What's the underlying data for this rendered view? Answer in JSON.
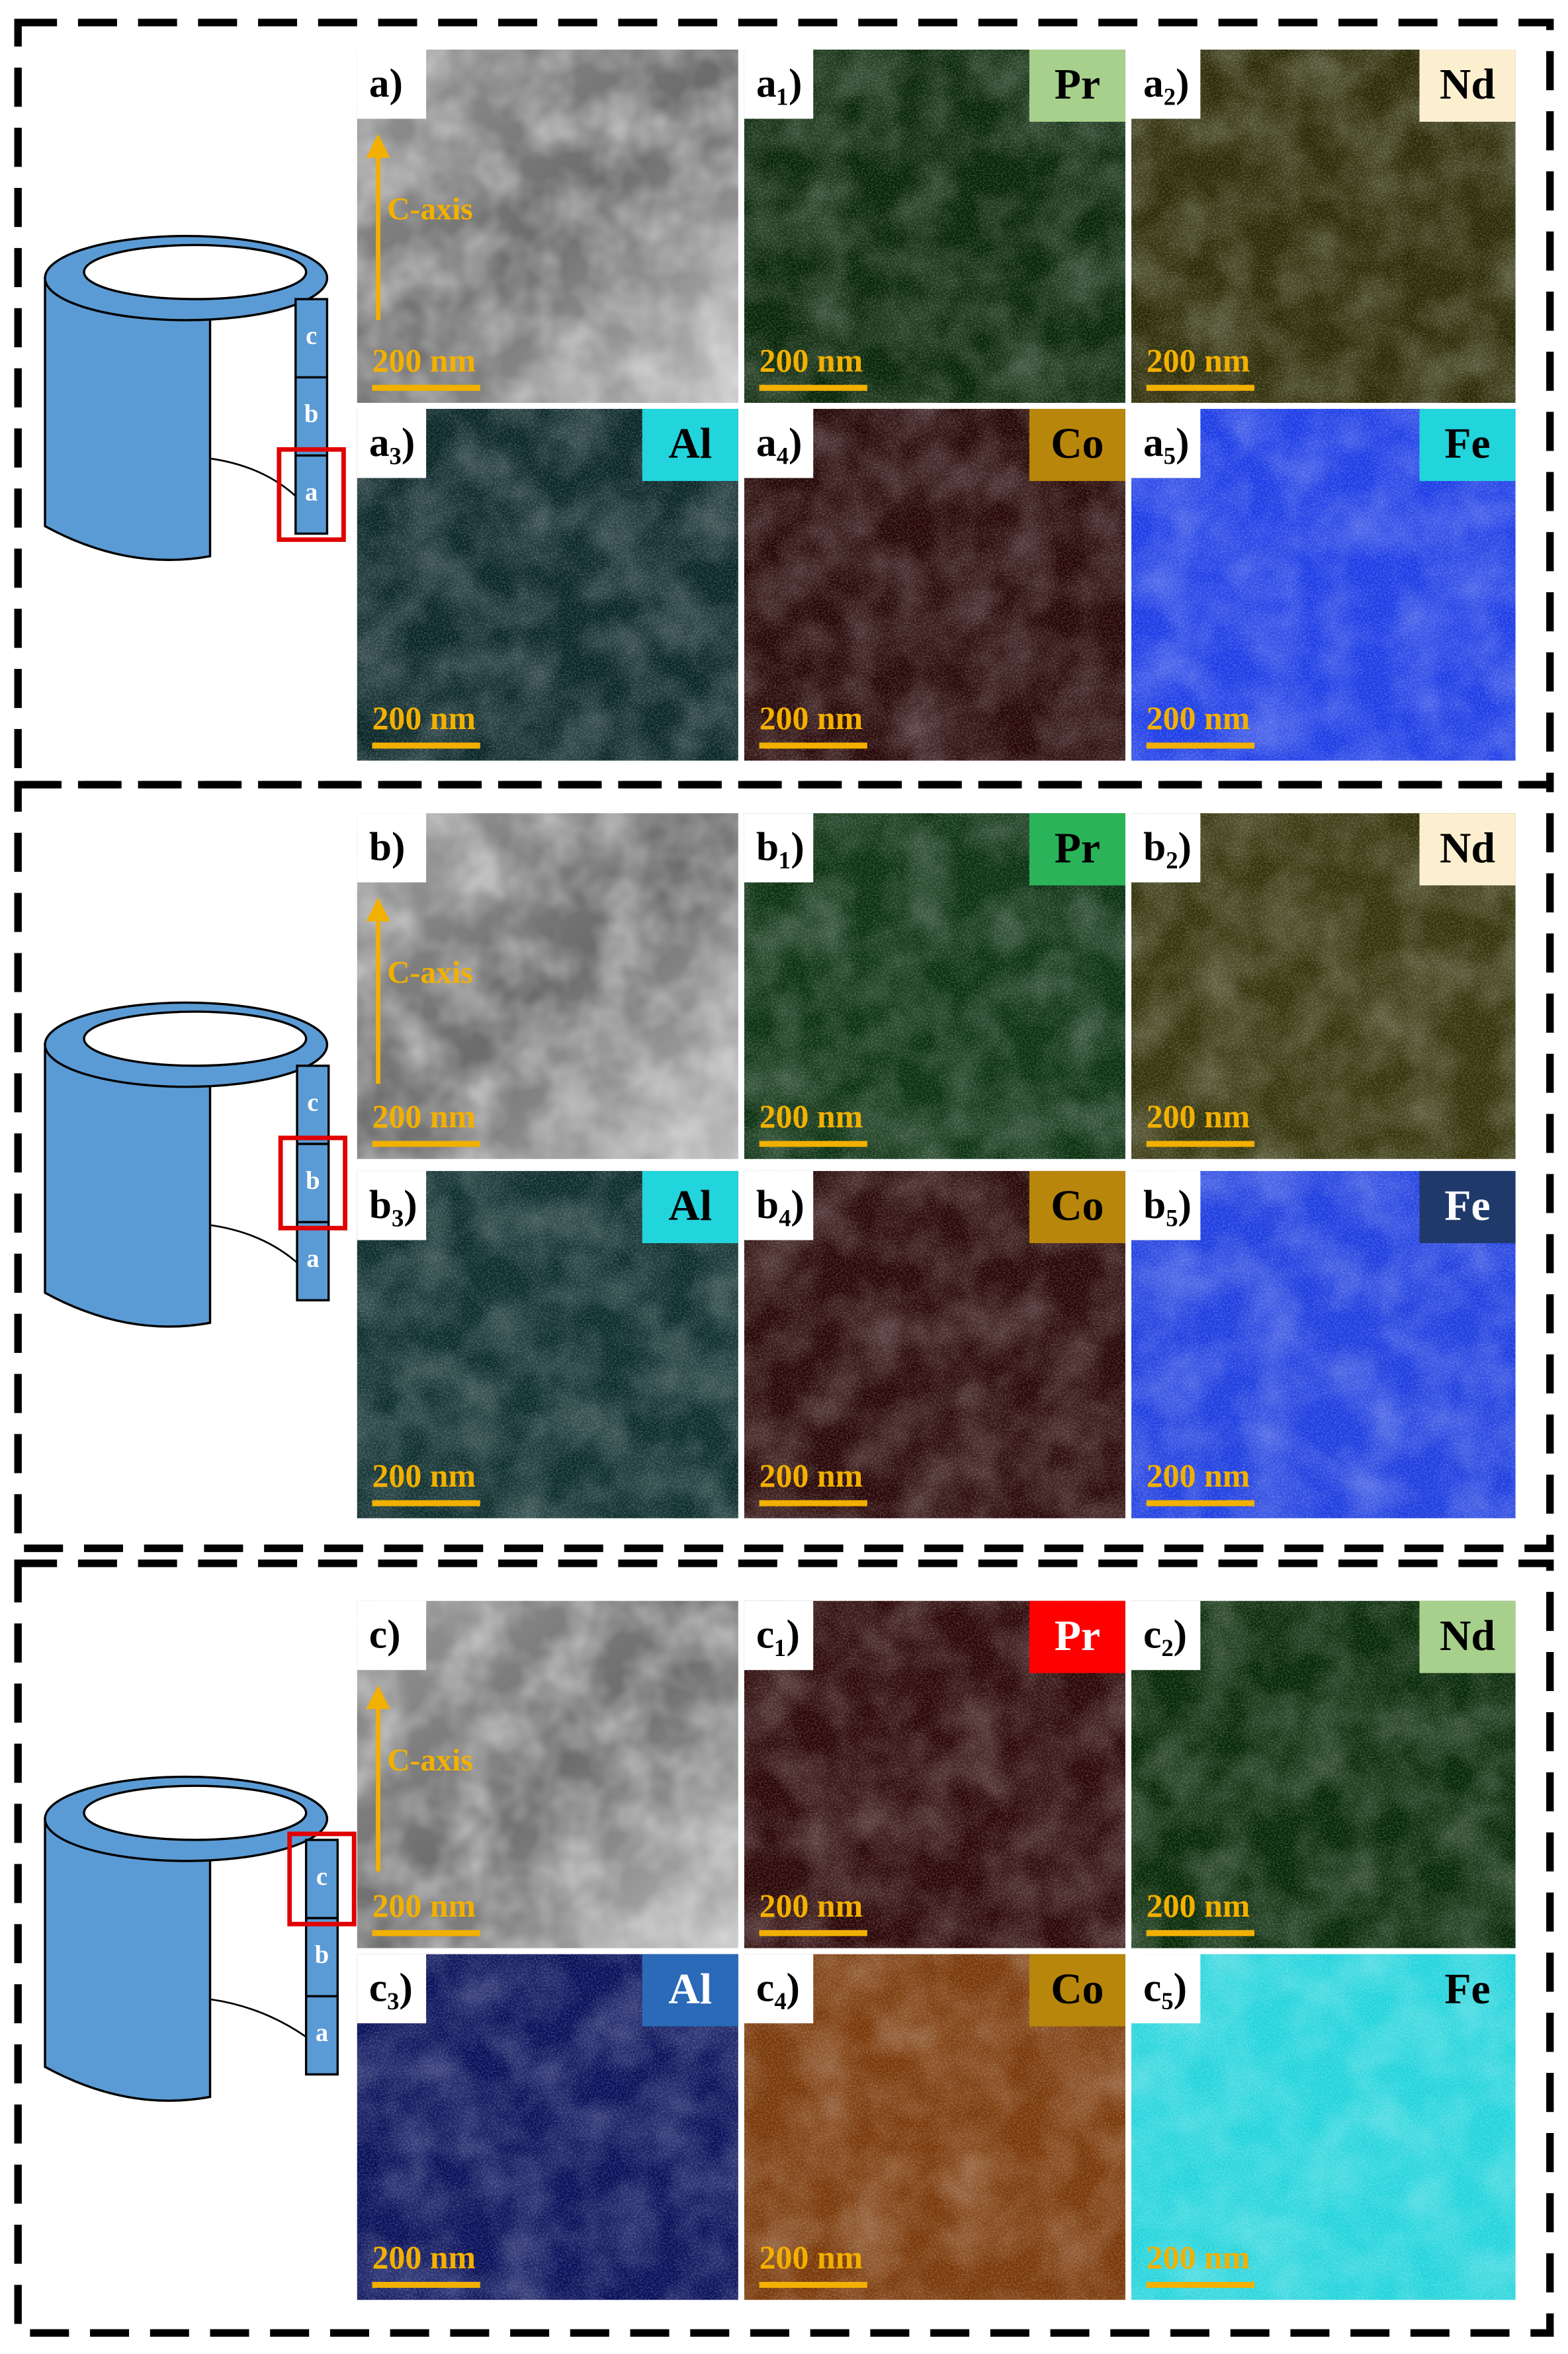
{
  "panels": [
    {
      "cylinder_labels": [
        "c",
        "b",
        "a"
      ],
      "images": [
        {
          "label": "a)",
          "axis_label": "C-axis",
          "scale": "200 nm"
        },
        {
          "label": "a₁)",
          "element": "Pr",
          "scale": "200 nm"
        },
        {
          "label": "a₂)",
          "element": "Nd",
          "scale": "200 nm"
        },
        {
          "label": "a₃)",
          "element": "Al",
          "scale": "200 nm"
        },
        {
          "label": "a₄)",
          "element": "Co",
          "scale": "200 nm"
        },
        {
          "label": "a₅)",
          "element": "Fe",
          "scale": "200 nm"
        }
      ]
    },
    {
      "cylinder_labels": [
        "c",
        "b",
        "a"
      ],
      "images": [
        {
          "label": "b)",
          "axis_label": "C-axis",
          "scale": "200 nm"
        },
        {
          "label": "b₁)",
          "element": "Pr",
          "scale": "200 nm"
        },
        {
          "label": "b₂)",
          "element": "Nd",
          "scale": "200 nm"
        },
        {
          "label": "b₃)",
          "element": "Al",
          "scale": "200 nm"
        },
        {
          "label": "b₄)",
          "element": "Co",
          "scale": "200 nm"
        },
        {
          "label": "b₅)",
          "element": "Fe",
          "scale": "200 nm"
        }
      ]
    },
    {
      "cylinder_labels": [
        "c",
        "b",
        "a"
      ],
      "images": [
        {
          "label": "c)",
          "axis_label": "C-axis",
          "scale": "200 nm"
        },
        {
          "label": "c₁)",
          "element": "Pr",
          "scale": "200 nm"
        },
        {
          "label": "c₂)",
          "element": "Nd",
          "scale": "200 nm"
        },
        {
          "label": "c₃)",
          "element": "Al",
          "scale": "200 nm"
        },
        {
          "label": "c₄)",
          "element": "Co",
          "scale": "200 nm"
        },
        {
          "label": "c₅)",
          "element": "Fe",
          "scale": "200 nm"
        }
      ]
    }
  ]
}
